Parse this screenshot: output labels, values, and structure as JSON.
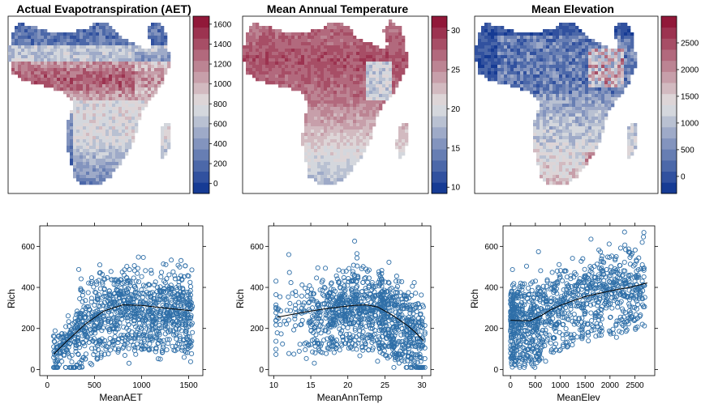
{
  "maps": [
    {
      "title": "Actual Evapotranspiration (AET)",
      "colorbar_ticks": [
        "0",
        "200",
        "400",
        "600",
        "800",
        "1000",
        "1200",
        "1400",
        "1600"
      ],
      "colorbar_range": [
        -100,
        1680
      ],
      "palette": "red-white-blue"
    },
    {
      "title": "Mean Annual Temperature",
      "colorbar_ticks": [
        "10",
        "15",
        "20",
        "25",
        "30"
      ],
      "colorbar_range": [
        9.2,
        31.8
      ],
      "palette": "red-white-blue"
    },
    {
      "title": "Mean Elevation",
      "colorbar_ticks": [
        "0",
        "500",
        "1000",
        "1500",
        "2000",
        "2500"
      ],
      "colorbar_range": [
        -320,
        3000
      ],
      "palette": "red-white-blue"
    }
  ],
  "colors": {
    "point": "#2f6fa8",
    "smoother": "#000000",
    "palette_low": "#08308f",
    "palette_mid": "#e2e2e2",
    "palette_high": "#8c0a2e"
  },
  "chart_data": [
    {
      "type": "scatter",
      "xlabel": "MeanAET",
      "ylabel": "Rich",
      "xlim": [
        -80,
        1650
      ],
      "ylim": [
        -30,
        700
      ],
      "x_ticks": [
        "0",
        "500",
        "1000",
        "1500"
      ],
      "y_ticks": [
        "0",
        "200",
        "400",
        "600"
      ],
      "smoother": {
        "x": [
          70,
          200,
          400,
          600,
          800,
          1000,
          1200,
          1400,
          1530
        ],
        "y": [
          75,
          135,
          220,
          285,
          315,
          312,
          302,
          292,
          287
        ]
      }
    },
    {
      "type": "scatter",
      "xlabel": "MeanAnnTemp",
      "ylabel": "Rich",
      "xlim": [
        9.3,
        31.2
      ],
      "ylim": [
        -30,
        700
      ],
      "x_ticks": [
        "10",
        "15",
        "20",
        "25",
        "30"
      ],
      "y_ticks": [
        "0",
        "200",
        "400",
        "600"
      ],
      "smoother": {
        "x": [
          10.5,
          13,
          15,
          17,
          19,
          21,
          22.5,
          24,
          26,
          28,
          29,
          30.2
        ],
        "y": [
          255,
          272,
          285,
          296,
          305,
          313,
          315,
          305,
          265,
          215,
          185,
          140
        ]
      }
    },
    {
      "type": "scatter",
      "xlabel": "MeanElev",
      "ylabel": "Rich",
      "xlim": [
        -150,
        2900
      ],
      "ylim": [
        -30,
        700
      ],
      "x_ticks": [
        "0",
        "500",
        "1000",
        "1500",
        "2000",
        "2500"
      ],
      "y_ticks": [
        "0",
        "200",
        "400",
        "600"
      ],
      "smoother": {
        "x": [
          0,
          200,
          400,
          600,
          800,
          1000,
          1200,
          1500,
          1800,
          2100,
          2400,
          2750
        ],
        "y": [
          240,
          238,
          238,
          260,
          290,
          312,
          330,
          355,
          372,
          388,
          400,
          422
        ]
      }
    }
  ]
}
